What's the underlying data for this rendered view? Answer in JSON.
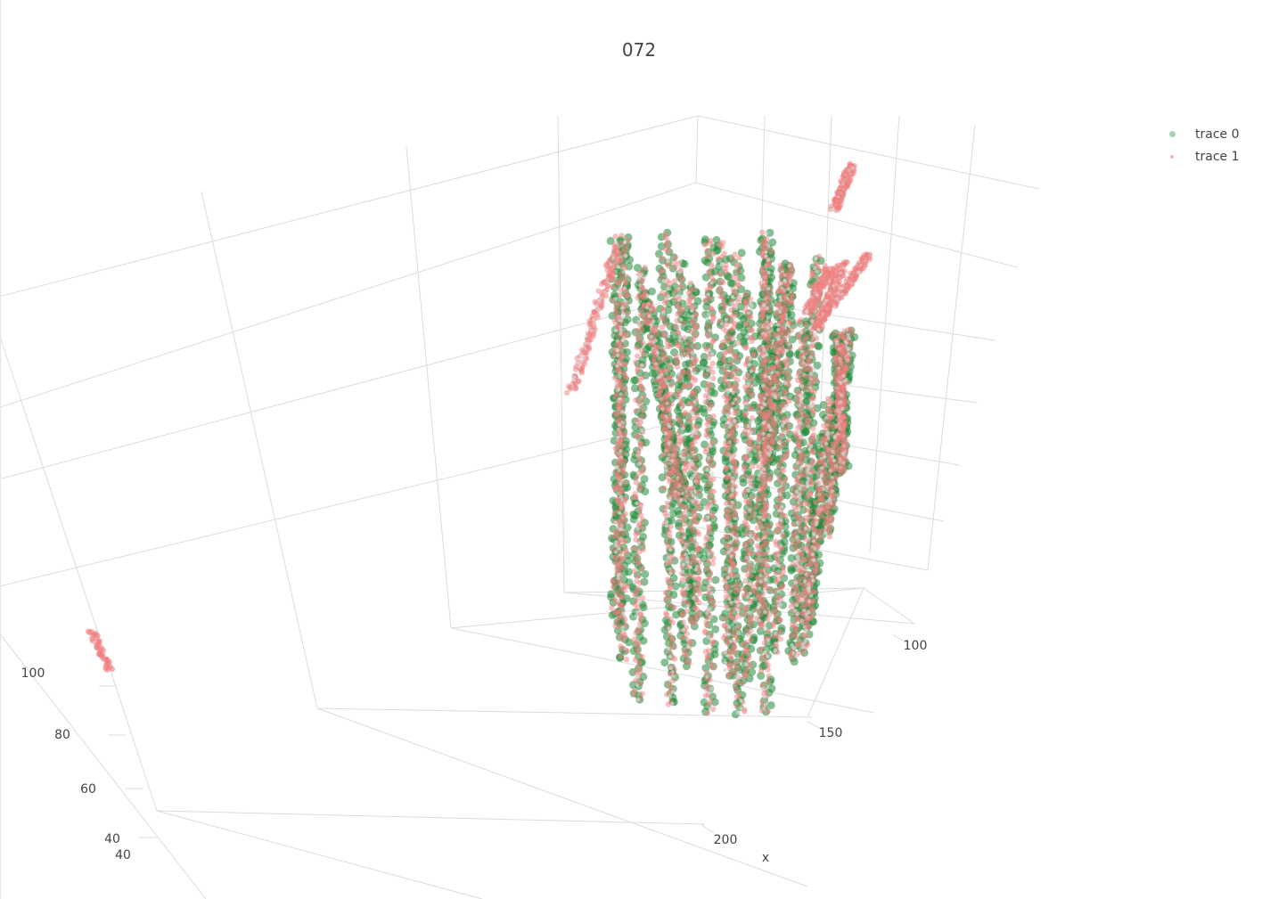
{
  "chart_data": {
    "type": "scatter",
    "title": "072",
    "xlabel": "x",
    "x_ticks": [
      "100",
      "150",
      "200"
    ],
    "y_ticks": [
      "40",
      "60",
      "80",
      "100"
    ],
    "z_ticks": [
      "40"
    ],
    "legend_position": "top-right",
    "series": [
      {
        "name": "trace 0",
        "color": "#228B3A"
      },
      {
        "name": "trace 1",
        "color": "#F08080"
      }
    ]
  }
}
